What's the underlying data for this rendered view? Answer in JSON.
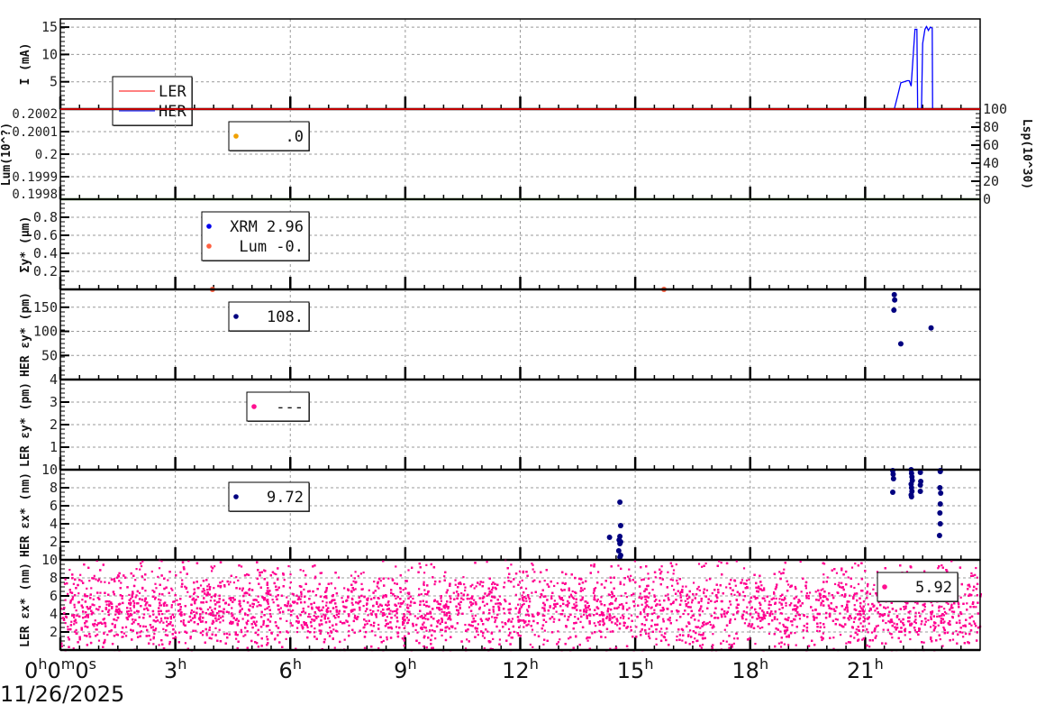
{
  "chart_data": [
    {
      "type": "line",
      "panel": "current",
      "ylabel": "I (mA)",
      "ylim": [
        0,
        16.5
      ],
      "yticks": [
        "5",
        "10",
        "15"
      ],
      "ytick_values": [
        5,
        10,
        15
      ],
      "legend": [
        "LER",
        "HER"
      ],
      "colors": {
        "LER": "#ff0000",
        "HER": "#0000ff"
      },
      "series": [
        {
          "name": "LER",
          "x": [
            0,
            24
          ],
          "y": [
            0,
            0
          ]
        },
        {
          "name": "HER",
          "x": [
            0,
            21.76,
            21.85,
            21.93,
            22.1,
            22.15,
            22.2,
            22.25,
            22.3,
            22.35,
            22.37,
            22.38,
            22.47,
            22.5,
            22.56,
            22.6,
            22.65,
            22.7,
            22.75,
            22.76,
            23.0
          ],
          "y": [
            0,
            0,
            2.5,
            4.8,
            5.2,
            5.2,
            4.2,
            9.5,
            14.6,
            14.6,
            0,
            0,
            0,
            12,
            14.6,
            15.1,
            14.4,
            15,
            14.8,
            0,
            0
          ]
        }
      ]
    },
    {
      "type": "scatter",
      "panel": "luminosity",
      "ylabel": "Lum(10^?)",
      "ylim": [
        0.1998,
        0.2002
      ],
      "yticks": [
        "0.1998",
        "0.1999",
        "0.2",
        "0.2001",
        "0.2002"
      ],
      "ytick_values": [
        0.1998,
        0.1999,
        0.2,
        0.2001,
        0.2002
      ],
      "right_ylabel": "Lsp(10^30)",
      "right_ylim": [
        0,
        100
      ],
      "right_yticks": [
        "0",
        "20",
        "40",
        "60",
        "80",
        "100"
      ],
      "right_ytick_values": [
        0,
        20,
        40,
        60,
        80,
        100
      ],
      "legend": [
        {
          "label": ".0",
          "color": "#f0a000"
        }
      ],
      "series": []
    },
    {
      "type": "scatter",
      "panel": "sigma_y",
      "ylabel": "Σy* (µm)",
      "ylim": [
        0,
        1
      ],
      "yticks": [
        "0.2",
        "0.4",
        "0.6",
        "0.8"
      ],
      "ytick_values": [
        0.2,
        0.4,
        0.6,
        0.8
      ],
      "legend": [
        {
          "label": "XRM 2.96",
          "color": "#0000ee"
        },
        {
          "label": "Lum -0.",
          "color": "#ff6040"
        }
      ],
      "series": [
        {
          "name": "Lum",
          "color": "#ff6040",
          "x": [
            3.97,
            15.75
          ],
          "y": [
            0,
            0
          ]
        }
      ]
    },
    {
      "type": "scatter",
      "panel": "her_eps_y",
      "ylabel": "HER εy* (pm)",
      "ylim": [
        0,
        187
      ],
      "yticks": [
        "50",
        "100",
        "150"
      ],
      "ytick_values": [
        50,
        100,
        150
      ],
      "legend": [
        {
          "label": "108.",
          "color": "#000080"
        }
      ],
      "series": [
        {
          "name": "HER εy",
          "color": "#000080",
          "x": [
            21.76,
            21.77,
            21.75,
            21.93,
            22.72
          ],
          "y": [
            176,
            165,
            144,
            74,
            107
          ]
        }
      ]
    },
    {
      "type": "scatter",
      "panel": "ler_eps_y",
      "ylabel": "LER εy* (pm)",
      "ylim": [
        0,
        4
      ],
      "yticks": [
        "1",
        "2",
        "3",
        "4"
      ],
      "ytick_values": [
        1,
        2,
        3,
        4
      ],
      "legend": [
        {
          "label": "---",
          "color": "#ff1090"
        }
      ],
      "series": []
    },
    {
      "type": "scatter",
      "panel": "her_eps_x",
      "ylabel": "HER εx* (nm)",
      "ylim": [
        0,
        10
      ],
      "yticks": [
        "2",
        "4",
        "6",
        "8",
        "10"
      ],
      "ytick_values": [
        2,
        4,
        6,
        8,
        10
      ],
      "legend": [
        {
          "label": "9.72",
          "color": "#000080"
        }
      ],
      "series": [
        {
          "name": "HER εx",
          "color": "#000080",
          "x": [
            14.33,
            14.6,
            14.62,
            14.6,
            14.58,
            14.62,
            14.6,
            14.57,
            14.62,
            14.6,
            21.72,
            21.73,
            21.74,
            21.72,
            22.2,
            22.21,
            22.22,
            22.23,
            22.2,
            22.21,
            22.22,
            22.2,
            22.21,
            22.44,
            22.45,
            22.44,
            22.44,
            22.96,
            22.95,
            22.97,
            22.96,
            22.95,
            22.96,
            22.94,
            22.96
          ],
          "y": [
            2.5,
            6.4,
            3.8,
            2.6,
            2.2,
            2.0,
            1.8,
            1.0,
            0.5,
            0.3,
            9.9,
            9.5,
            9.0,
            7.5,
            10,
            9.6,
            9.2,
            8.8,
            8.4,
            8.0,
            7.6,
            7.2,
            7.0,
            9.7,
            8.7,
            8.3,
            7.6,
            9.9,
            8.0,
            7.4,
            6.2,
            5.2,
            4.0,
            2.7,
            9.8
          ]
        }
      ]
    },
    {
      "type": "scatter",
      "panel": "ler_eps_x",
      "ylabel": "LER εx* (nm)",
      "ylim": [
        0,
        10
      ],
      "yticks": [
        "2",
        "4",
        "6",
        "8",
        "10"
      ],
      "ytick_values": [
        2,
        4,
        6,
        8,
        10
      ],
      "legend": [
        {
          "label": "5.92",
          "color": "#ff1090"
        }
      ],
      "series": [
        {
          "name": "LER εx",
          "color": "#ff0090",
          "distribution": {
            "mean": 4.5,
            "spread": 2.6,
            "min": 0,
            "max": 10,
            "count": 9000,
            "x_range": [
              0,
              24
            ]
          }
        }
      ]
    }
  ],
  "x_axis": {
    "range_hours": [
      0,
      24
    ],
    "ticks": [
      {
        "h": 0,
        "base": "0",
        "sup": "h",
        "extra": "0",
        "sup2": "m",
        "extra2": "0",
        "sup3": "s"
      },
      {
        "h": 3,
        "base": "3",
        "sup": "h"
      },
      {
        "h": 6,
        "base": "6",
        "sup": "h"
      },
      {
        "h": 9,
        "base": "9",
        "sup": "h"
      },
      {
        "h": 12,
        "base": "12",
        "sup": "h"
      },
      {
        "h": 15,
        "base": "15",
        "sup": "h"
      },
      {
        "h": 18,
        "base": "18",
        "sup": "h"
      },
      {
        "h": 21,
        "base": "21",
        "sup": "h"
      }
    ],
    "date": "11/26/2025"
  }
}
